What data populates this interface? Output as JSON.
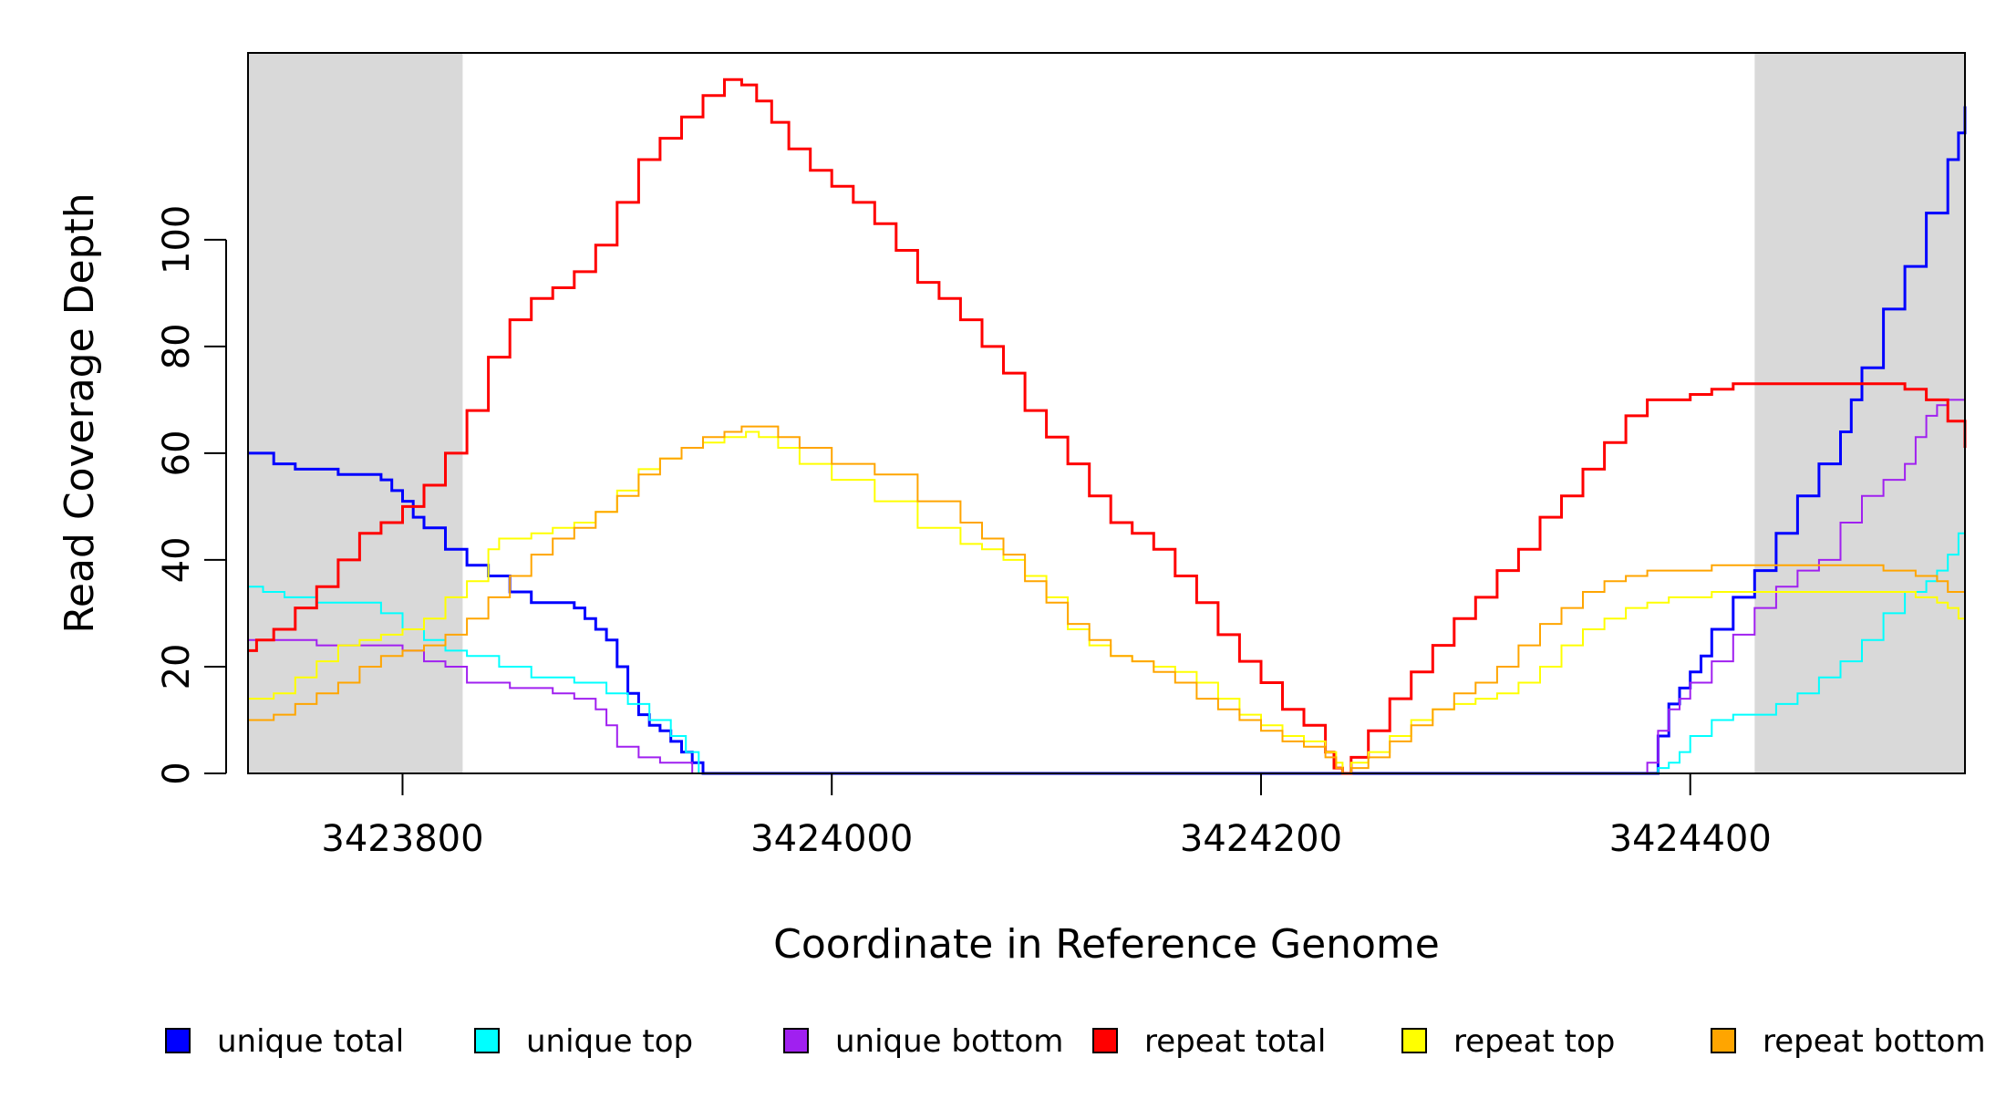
{
  "chart_data": {
    "type": "line",
    "xlabel": "Coordinate in Reference Genome",
    "ylabel": "Read Coverage Depth",
    "xlim": [
      3423728,
      3424528
    ],
    "ylim": [
      0,
      135
    ],
    "x_ticks": [
      {
        "value": 3423800,
        "label": "3423800"
      },
      {
        "value": 3424000,
        "label": "3424000"
      },
      {
        "value": 3424200,
        "label": "3424200"
      },
      {
        "value": 3424400,
        "label": "3424400"
      }
    ],
    "y_ticks": [
      {
        "value": 0,
        "label": "0"
      },
      {
        "value": 20,
        "label": "20"
      },
      {
        "value": 40,
        "label": "40"
      },
      {
        "value": 60,
        "label": "60"
      },
      {
        "value": 80,
        "label": "80"
      },
      {
        "value": 100,
        "label": "100"
      }
    ],
    "shaded_regions": [
      {
        "x_start": 3423728,
        "x_end": 3423828,
        "color": "#d9d9d9"
      },
      {
        "x_start": 3424430,
        "x_end": 3424528,
        "color": "#d9d9d9"
      }
    ],
    "grid": false,
    "legend_position": "bottom",
    "series": [
      {
        "name": "unique total",
        "color": "#0000ff",
        "width": 3,
        "x": [
          3423728,
          3423735,
          3423740,
          3423750,
          3423760,
          3423770,
          3423780,
          3423790,
          3423795,
          3423800,
          3423805,
          3423810,
          3423820,
          3423830,
          3423840,
          3423850,
          3423860,
          3423870,
          3423880,
          3423885,
          3423890,
          3423895,
          3423900,
          3423905,
          3423910,
          3423915,
          3423920,
          3423925,
          3423930,
          3423935,
          3423940,
          3424380,
          3424385,
          3424390,
          3424395,
          3424400,
          3424405,
          3424410,
          3424420,
          3424430,
          3424440,
          3424450,
          3424460,
          3424470,
          3424475,
          3424480,
          3424490,
          3424500,
          3424510,
          3424520,
          3424525,
          3424528
        ],
        "y": [
          60,
          60,
          58,
          57,
          57,
          56,
          56,
          55,
          53,
          51,
          48,
          46,
          42,
          39,
          37,
          34,
          32,
          32,
          31,
          29,
          27,
          25,
          20,
          15,
          11,
          9,
          8,
          6,
          4,
          2,
          0,
          0,
          7,
          13,
          16,
          19,
          22,
          27,
          33,
          38,
          45,
          52,
          58,
          64,
          70,
          76,
          87,
          95,
          105,
          115,
          120,
          125
        ]
      },
      {
        "name": "unique top",
        "color": "#00ffff",
        "width": 2,
        "x": [
          3423728,
          3423735,
          3423745,
          3423760,
          3423780,
          3423790,
          3423800,
          3423810,
          3423820,
          3423830,
          3423845,
          3423860,
          3423880,
          3423895,
          3423905,
          3423915,
          3423925,
          3423932,
          3423938,
          3424380,
          3424385,
          3424390,
          3424395,
          3424400,
          3424410,
          3424420,
          3424430,
          3424440,
          3424450,
          3424460,
          3424470,
          3424480,
          3424490,
          3424500,
          3424510,
          3424515,
          3424520,
          3424525,
          3424528
        ],
        "y": [
          35,
          34,
          33,
          32,
          32,
          30,
          27,
          25,
          23,
          22,
          20,
          18,
          17,
          15,
          13,
          10,
          7,
          4,
          0,
          0,
          1,
          2,
          4,
          7,
          10,
          11,
          11,
          13,
          15,
          18,
          21,
          25,
          30,
          34,
          36,
          38,
          41,
          45,
          51
        ]
      },
      {
        "name": "unique bottom",
        "color": "#a020f0",
        "width": 2,
        "x": [
          3423728,
          3423740,
          3423760,
          3423780,
          3423800,
          3423810,
          3423820,
          3423830,
          3423850,
          3423870,
          3423880,
          3423890,
          3423895,
          3423900,
          3423910,
          3423920,
          3423930,
          3423935,
          3424377,
          3424380,
          3424385,
          3424390,
          3424395,
          3424400,
          3424410,
          3424420,
          3424430,
          3424440,
          3424450,
          3424460,
          3424470,
          3424480,
          3424490,
          3424500,
          3424505,
          3424510,
          3424515,
          3424520,
          3424528
        ],
        "y": [
          25,
          25,
          24,
          24,
          23,
          21,
          20,
          17,
          16,
          15,
          14,
          12,
          9,
          5,
          3,
          2,
          2,
          0,
          0,
          2,
          8,
          12,
          14,
          17,
          21,
          26,
          31,
          35,
          38,
          40,
          47,
          52,
          55,
          58,
          63,
          67,
          69,
          70,
          70
        ]
      },
      {
        "name": "repeat total",
        "color": "#ff0000",
        "width": 3,
        "x": [
          3423728,
          3423732,
          3423740,
          3423750,
          3423760,
          3423770,
          3423780,
          3423790,
          3423800,
          3423810,
          3423820,
          3423830,
          3423840,
          3423850,
          3423860,
          3423870,
          3423880,
          3423890,
          3423900,
          3423910,
          3423920,
          3423930,
          3423940,
          3423950,
          3423958,
          3423965,
          3423972,
          3423980,
          3423990,
          3424000,
          3424010,
          3424020,
          3424030,
          3424040,
          3424050,
          3424060,
          3424070,
          3424080,
          3424090,
          3424100,
          3424110,
          3424120,
          3424130,
          3424140,
          3424150,
          3424160,
          3424170,
          3424180,
          3424190,
          3424200,
          3424210,
          3424220,
          3424230,
          3424234,
          3424238,
          3424242,
          3424250,
          3424260,
          3424270,
          3424280,
          3424290,
          3424300,
          3424310,
          3424320,
          3424330,
          3424340,
          3424350,
          3424360,
          3424370,
          3424380,
          3424390,
          3424400,
          3424410,
          3424420,
          3424430,
          3424440,
          3424450,
          3424460,
          3424470,
          3424480,
          3424490,
          3424500,
          3424510,
          3424520,
          3424528
        ],
        "y": [
          23,
          25,
          27,
          31,
          35,
          40,
          45,
          47,
          50,
          54,
          60,
          68,
          78,
          85,
          89,
          91,
          94,
          99,
          107,
          115,
          119,
          123,
          127,
          130,
          129,
          126,
          122,
          117,
          113,
          110,
          107,
          103,
          98,
          92,
          89,
          85,
          80,
          75,
          68,
          63,
          58,
          52,
          47,
          45,
          42,
          37,
          32,
          26,
          21,
          17,
          12,
          9,
          4,
          1,
          0,
          3,
          8,
          14,
          19,
          24,
          29,
          33,
          38,
          42,
          48,
          52,
          57,
          62,
          67,
          70,
          70,
          71,
          72,
          73,
          73,
          73,
          73,
          73,
          73,
          73,
          73,
          72,
          70,
          66,
          61
        ]
      },
      {
        "name": "repeat top",
        "color": "#ffff00",
        "width": 2,
        "x": [
          3423728,
          3423740,
          3423750,
          3423760,
          3423770,
          3423780,
          3423790,
          3423800,
          3423810,
          3423820,
          3423830,
          3423840,
          3423845,
          3423850,
          3423860,
          3423870,
          3423880,
          3423890,
          3423900,
          3423910,
          3423920,
          3423930,
          3423940,
          3423950,
          3423960,
          3423966,
          3423975,
          3423985,
          3424000,
          3424020,
          3424040,
          3424060,
          3424070,
          3424080,
          3424090,
          3424100,
          3424110,
          3424120,
          3424130,
          3424140,
          3424150,
          3424160,
          3424170,
          3424180,
          3424190,
          3424200,
          3424210,
          3424220,
          3424230,
          3424235,
          3424238,
          3424242,
          3424250,
          3424260,
          3424270,
          3424280,
          3424290,
          3424300,
          3424310,
          3424320,
          3424330,
          3424340,
          3424350,
          3424360,
          3424370,
          3424380,
          3424390,
          3424400,
          3424410,
          3424420,
          3424430,
          3424440,
          3424450,
          3424460,
          3424470,
          3424480,
          3424490,
          3424500,
          3424505,
          3424510,
          3424515,
          3424520,
          3424525,
          3424528
        ],
        "y": [
          14,
          15,
          18,
          21,
          24,
          25,
          26,
          27,
          29,
          33,
          36,
          42,
          44,
          44,
          45,
          46,
          47,
          49,
          53,
          57,
          59,
          61,
          62,
          63,
          64,
          63,
          61,
          58,
          55,
          51,
          46,
          43,
          42,
          40,
          37,
          33,
          27,
          24,
          22,
          21,
          20,
          19,
          17,
          14,
          11,
          9,
          7,
          6,
          4,
          2,
          0,
          2,
          4,
          7,
          10,
          12,
          13,
          14,
          15,
          17,
          20,
          24,
          27,
          29,
          31,
          32,
          33,
          33,
          34,
          34,
          34,
          34,
          34,
          34,
          34,
          34,
          34,
          34,
          33,
          33,
          32,
          31,
          29,
          27
        ]
      },
      {
        "name": "repeat bottom",
        "color": "#ffa500",
        "width": 2,
        "x": [
          3423728,
          3423740,
          3423750,
          3423760,
          3423770,
          3423780,
          3423790,
          3423800,
          3423810,
          3423820,
          3423830,
          3423840,
          3423850,
          3423860,
          3423870,
          3423880,
          3423890,
          3423900,
          3423910,
          3423920,
          3423930,
          3423940,
          3423950,
          3423958,
          3423965,
          3423975,
          3423985,
          3424000,
          3424020,
          3424040,
          3424060,
          3424070,
          3424080,
          3424090,
          3424100,
          3424110,
          3424120,
          3424130,
          3424140,
          3424150,
          3424160,
          3424170,
          3424180,
          3424190,
          3424200,
          3424210,
          3424220,
          3424230,
          3424235,
          3424238,
          3424242,
          3424250,
          3424260,
          3424270,
          3424280,
          3424290,
          3424300,
          3424310,
          3424320,
          3424330,
          3424340,
          3424350,
          3424360,
          3424370,
          3424380,
          3424390,
          3424400,
          3424410,
          3424420,
          3424430,
          3424440,
          3424450,
          3424460,
          3424470,
          3424480,
          3424490,
          3424500,
          3424505,
          3424510,
          3424515,
          3424520,
          3424528
        ],
        "y": [
          10,
          11,
          13,
          15,
          17,
          20,
          22,
          23,
          24,
          26,
          29,
          33,
          37,
          41,
          44,
          46,
          49,
          52,
          56,
          59,
          61,
          63,
          64,
          65,
          65,
          63,
          61,
          58,
          56,
          51,
          47,
          44,
          41,
          36,
          32,
          28,
          25,
          22,
          21,
          19,
          17,
          14,
          12,
          10,
          8,
          6,
          5,
          3,
          1,
          0,
          1,
          3,
          6,
          9,
          12,
          15,
          17,
          20,
          24,
          28,
          31,
          34,
          36,
          37,
          38,
          38,
          38,
          39,
          39,
          39,
          39,
          39,
          39,
          39,
          39,
          38,
          38,
          37,
          37,
          36,
          34,
          33
        ]
      }
    ]
  }
}
